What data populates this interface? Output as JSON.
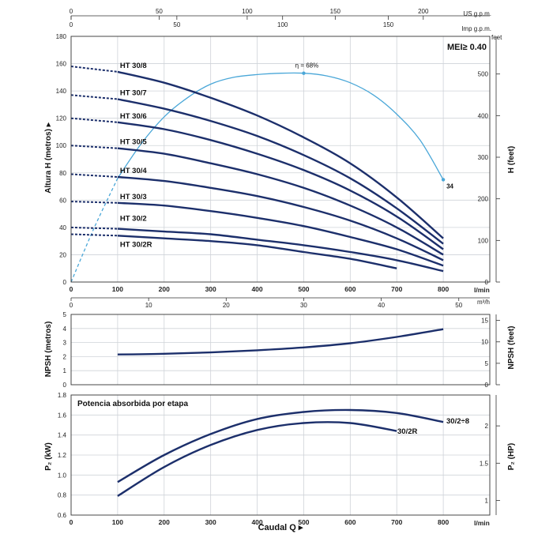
{
  "top_axes": {
    "us_gpm_ticks": [
      0,
      50,
      100,
      150,
      200
    ],
    "us_gpm_unit": "US g.p.m.",
    "imp_gpm_ticks": [
      0,
      50,
      100,
      150
    ],
    "imp_gpm_unit": "Imp g.p.m."
  },
  "chart_data": [
    {
      "type": "line",
      "panel": "head",
      "ylabel": "Altura H (metros)",
      "ylabel2": "H (feet)",
      "y2_unit": "feet",
      "badge": "MEI≥ 0.40",
      "xlim": [
        0,
        900
      ],
      "ylim": [
        0,
        180
      ],
      "x_unit": "l/min",
      "x_ticks": [
        0,
        100,
        200,
        300,
        400,
        500,
        600,
        700,
        800
      ],
      "y_ticks": [
        0,
        20,
        40,
        60,
        80,
        100,
        120,
        140,
        160,
        180
      ],
      "y2_ticks": [
        0,
        100,
        200,
        300,
        400,
        500
      ],
      "m3h_unit": "m³/h",
      "m3h_ticks": [
        0,
        10,
        20,
        30,
        40,
        50
      ],
      "grid": true,
      "series": [
        {
          "name": "HT 30/8",
          "x": [
            0,
            100,
            200,
            300,
            400,
            500,
            600,
            700,
            800
          ],
          "y": [
            158,
            154,
            146,
            135,
            122,
            106,
            87,
            62,
            32
          ]
        },
        {
          "name": "HT 30/7",
          "x": [
            0,
            100,
            200,
            300,
            400,
            500,
            600,
            700,
            800
          ],
          "y": [
            137,
            134,
            127,
            118,
            107,
            93,
            76,
            54,
            28
          ]
        },
        {
          "name": "HT 30/6",
          "x": [
            0,
            100,
            200,
            300,
            400,
            500,
            600,
            700,
            800
          ],
          "y": [
            120,
            117,
            112,
            104,
            94,
            82,
            67,
            48,
            24
          ]
        },
        {
          "name": "HT 30/5",
          "x": [
            0,
            100,
            200,
            300,
            400,
            500,
            600,
            700,
            800
          ],
          "y": [
            100,
            98,
            94,
            87,
            79,
            69,
            56,
            40,
            20
          ]
        },
        {
          "name": "HT 30/4",
          "x": [
            0,
            100,
            200,
            300,
            400,
            500,
            600,
            700,
            800
          ],
          "y": [
            79,
            77,
            74,
            69,
            63,
            55,
            45,
            32,
            16
          ]
        },
        {
          "name": "HT 30/3",
          "x": [
            0,
            100,
            200,
            300,
            400,
            500,
            600,
            700,
            800
          ],
          "y": [
            59,
            58,
            56,
            52,
            47,
            41,
            33,
            24,
            12
          ]
        },
        {
          "name": "HT 30/2",
          "x": [
            0,
            100,
            200,
            300,
            400,
            500,
            600,
            700,
            800
          ],
          "y": [
            40,
            39,
            37,
            35,
            31,
            27,
            22,
            16,
            8
          ]
        },
        {
          "name": "HT 30/2R",
          "x": [
            0,
            100,
            200,
            300,
            400,
            500,
            600,
            700
          ],
          "y": [
            35,
            34,
            32,
            30,
            27,
            22,
            17,
            10
          ]
        }
      ],
      "efficiency": {
        "x": [
          0,
          50,
          100,
          150,
          200,
          250,
          300,
          350,
          400,
          450,
          500,
          550,
          600,
          650,
          700,
          750,
          800
        ],
        "y": [
          0,
          40,
          76,
          101,
          121,
          135,
          145,
          150,
          152,
          153,
          153,
          151,
          146,
          137,
          123,
          104,
          75
        ],
        "peak_label": "η = 68%",
        "peak_x": 500,
        "peak_y": 153,
        "end_label": "34",
        "end_x": 800,
        "end_y": 75
      }
    },
    {
      "type": "line",
      "panel": "npsh",
      "ylabel": "NPSH (metros)",
      "ylabel2": "NPSH (feet)",
      "xlim": [
        0,
        900
      ],
      "ylim": [
        0,
        5
      ],
      "y_ticks": [
        0,
        1,
        2,
        3,
        4,
        5
      ],
      "y2_ticks": [
        0,
        5,
        10,
        15
      ],
      "grid": true,
      "series": [
        {
          "x": [
            100,
            200,
            300,
            400,
            500,
            600,
            700,
            800
          ],
          "y": [
            2.15,
            2.2,
            2.3,
            2.45,
            2.65,
            2.95,
            3.4,
            3.95
          ]
        }
      ]
    },
    {
      "type": "line",
      "panel": "power",
      "title": "Potencia absorbida por etapa",
      "ylabel": "P₂ (kW)",
      "ylabel2": "P₂ (HP)",
      "xlabel": "Caudal Q",
      "x_unit": "l/min",
      "xlim": [
        0,
        900
      ],
      "ylim": [
        0.6,
        1.8
      ],
      "x_ticks": [
        0,
        100,
        200,
        300,
        400,
        500,
        600,
        700,
        800
      ],
      "y_ticks": [
        0.6,
        0.8,
        1.0,
        1.2,
        1.4,
        1.6,
        1.8
      ],
      "y2_ticks": [
        1,
        1.5,
        2
      ],
      "grid": true,
      "series": [
        {
          "name": "30/2÷8",
          "x": [
            100,
            200,
            300,
            400,
            500,
            600,
            700,
            800
          ],
          "y": [
            0.93,
            1.2,
            1.41,
            1.56,
            1.63,
            1.65,
            1.62,
            1.53
          ]
        },
        {
          "name": "30/2R",
          "x": [
            100,
            200,
            300,
            400,
            500,
            600,
            700
          ],
          "y": [
            0.79,
            1.08,
            1.3,
            1.45,
            1.52,
            1.52,
            1.44
          ]
        }
      ]
    }
  ],
  "colors": {
    "curve": "#1c2f6b",
    "efficiency": "#4aa7d8",
    "grid": "#cfd3d8"
  }
}
